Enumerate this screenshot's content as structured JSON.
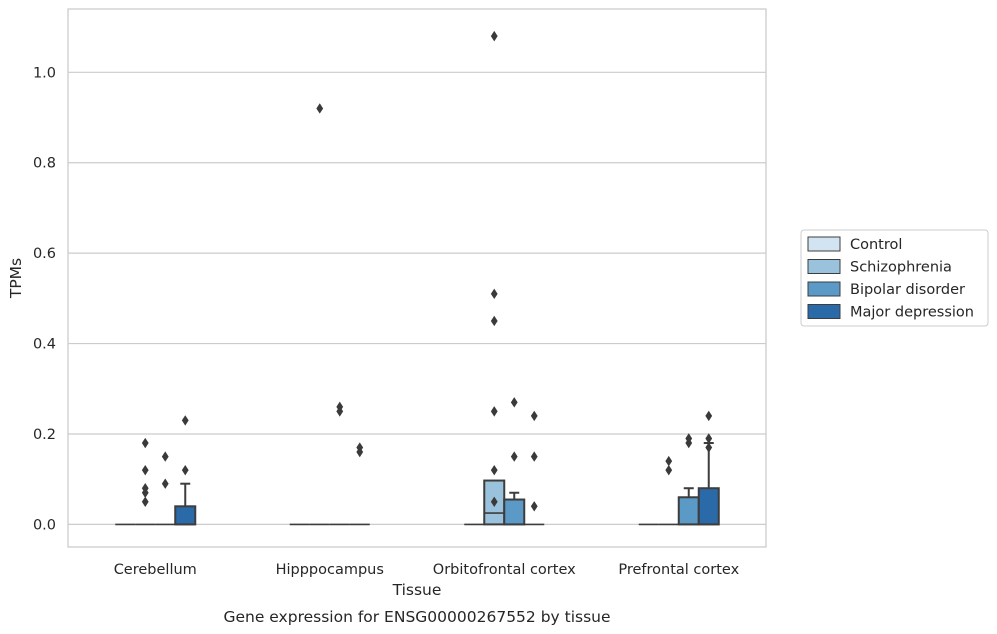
{
  "chart_data": {
    "type": "box",
    "caption": "Gene expression for ENSG00000267552 by tissue",
    "xlabel": "Tissue",
    "ylabel": "TPMs",
    "ylim": [
      -0.05,
      1.14
    ],
    "yticks": [
      0.0,
      0.2,
      0.4,
      0.6,
      0.8,
      1.0
    ],
    "ytick_labels": [
      "0.0",
      "0.2",
      "0.4",
      "0.6",
      "0.8",
      "1.0"
    ],
    "grid": true,
    "legend_placement": "right",
    "categories": [
      "Cerebellum",
      "Hipppocampus",
      "Orbitofrontal cortex",
      "Prefrontal cortex"
    ],
    "series": [
      {
        "name": "Control",
        "color": "#d2e3f2",
        "boxes": [
          {
            "q1": 0,
            "median": 0,
            "q3": 0,
            "whislo": 0,
            "whishi": 0,
            "fliers": []
          },
          {
            "q1": 0,
            "median": 0,
            "q3": 0,
            "whislo": 0,
            "whishi": 0,
            "fliers": []
          },
          {
            "q1": 0,
            "median": 0,
            "q3": 0,
            "whislo": 0,
            "whishi": 0,
            "fliers": []
          },
          {
            "q1": 0,
            "median": 0,
            "q3": 0,
            "whislo": 0,
            "whishi": 0,
            "fliers": []
          }
        ]
      },
      {
        "name": "Schizophrenia",
        "color": "#9ac2dd",
        "boxes": [
          {
            "q1": 0,
            "median": 0,
            "q3": 0,
            "whislo": 0,
            "whishi": 0,
            "fliers": [
              0.05,
              0.07,
              0.12,
              0.08,
              0.18
            ]
          },
          {
            "q1": 0,
            "median": 0,
            "q3": 0,
            "whislo": 0,
            "whishi": 0,
            "fliers": [
              0.92
            ]
          },
          {
            "q1": 0,
            "median": 0.025,
            "q3": 0.097,
            "whislo": 0,
            "whishi": 0.097,
            "fliers": [
              0.05,
              0.12,
              0.25,
              0.45,
              0.51,
              1.08
            ]
          },
          {
            "q1": 0,
            "median": 0,
            "q3": 0,
            "whislo": 0,
            "whishi": 0,
            "fliers": [
              0.12,
              0.14
            ]
          }
        ]
      },
      {
        "name": "Bipolar disorder",
        "color": "#5b9ac7",
        "boxes": [
          {
            "q1": 0,
            "median": 0,
            "q3": 0,
            "whislo": 0,
            "whishi": 0,
            "fliers": [
              0.09,
              0.15
            ]
          },
          {
            "q1": 0,
            "median": 0,
            "q3": 0,
            "whislo": 0,
            "whishi": 0,
            "fliers": [
              0.25,
              0.26
            ]
          },
          {
            "q1": 0,
            "median": 0,
            "q3": 0.055,
            "whislo": 0,
            "whishi": 0.07,
            "fliers": [
              0.15,
              0.27
            ]
          },
          {
            "q1": 0,
            "median": 0,
            "q3": 0.06,
            "whislo": 0,
            "whishi": 0.08,
            "fliers": [
              0.18,
              0.19
            ]
          }
        ]
      },
      {
        "name": "Major depression",
        "color": "#2b6aa8",
        "boxes": [
          {
            "q1": 0,
            "median": 0,
            "q3": 0.04,
            "whislo": 0,
            "whishi": 0.09,
            "fliers": [
              0.12,
              0.23
            ]
          },
          {
            "q1": 0,
            "median": 0,
            "q3": 0,
            "whislo": 0,
            "whishi": 0,
            "fliers": [
              0.16,
              0.17
            ]
          },
          {
            "q1": 0,
            "median": 0,
            "q3": 0,
            "whislo": 0,
            "whishi": 0,
            "fliers": [
              0.04,
              0.15,
              0.24
            ]
          },
          {
            "q1": 0,
            "median": 0,
            "q3": 0.08,
            "whislo": 0,
            "whishi": 0.18,
            "fliers": [
              0.17,
              0.19,
              0.24
            ]
          }
        ]
      }
    ]
  }
}
